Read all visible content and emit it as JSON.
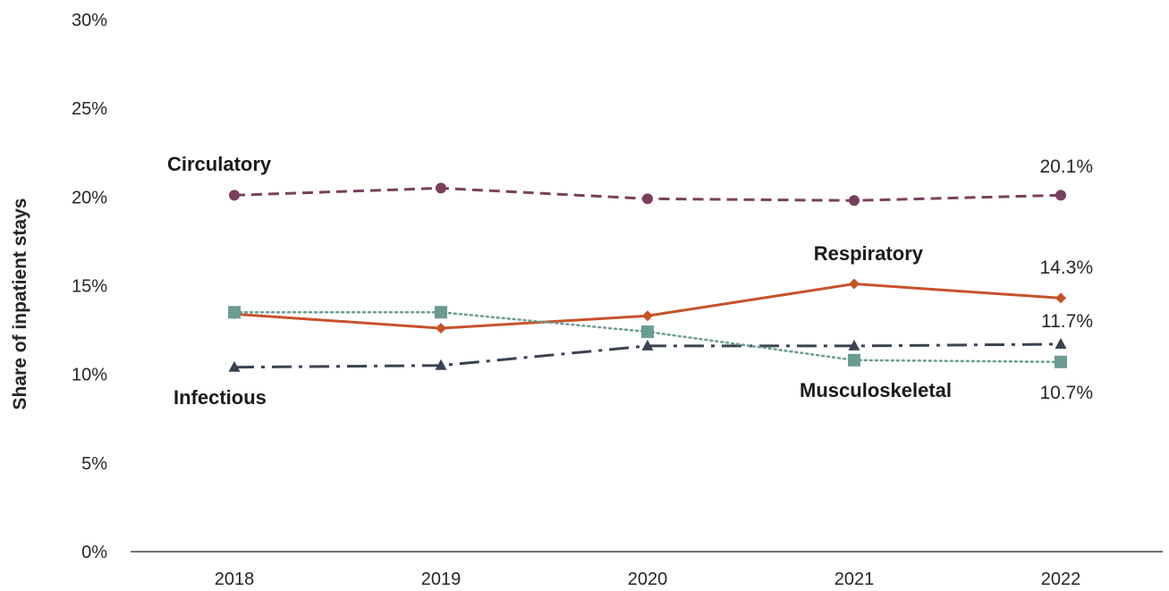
{
  "chart_data": {
    "type": "line",
    "ylabel": "Share of inpatient stays",
    "xlabel": "",
    "x": [
      "2018",
      "2019",
      "2020",
      "2021",
      "2022"
    ],
    "ylim": [
      0,
      30
    ],
    "yticks": [
      0,
      5,
      10,
      15,
      20,
      25,
      30
    ],
    "ytick_labels": [
      "0%",
      "5%",
      "10%",
      "15%",
      "20%",
      "25%",
      "30%"
    ],
    "grid": false,
    "legend": "none (direct labels)",
    "series": [
      {
        "name": "Circulatory",
        "values": [
          20.1,
          20.5,
          19.9,
          19.8,
          20.1
        ],
        "color": "#7b3f5e",
        "line_style": "dashed",
        "marker": "circle",
        "end_label": "20.1%"
      },
      {
        "name": "Respiratory",
        "values": [
          13.4,
          12.6,
          13.3,
          15.1,
          14.3
        ],
        "color": "#c8522a",
        "line_style": "solid",
        "marker": "diamond",
        "end_label": "14.3%"
      },
      {
        "name": "Infectious",
        "values": [
          10.4,
          10.5,
          11.6,
          11.6,
          11.7
        ],
        "color": "#3a4352",
        "line_style": "dash-dot",
        "marker": "triangle",
        "end_label": "11.7%"
      },
      {
        "name": "Musculoskeletal",
        "values": [
          13.5,
          13.5,
          12.4,
          10.8,
          10.7
        ],
        "color": "#6a9c94",
        "line_style": "dotted",
        "marker": "square",
        "end_label": "10.7%"
      }
    ]
  }
}
